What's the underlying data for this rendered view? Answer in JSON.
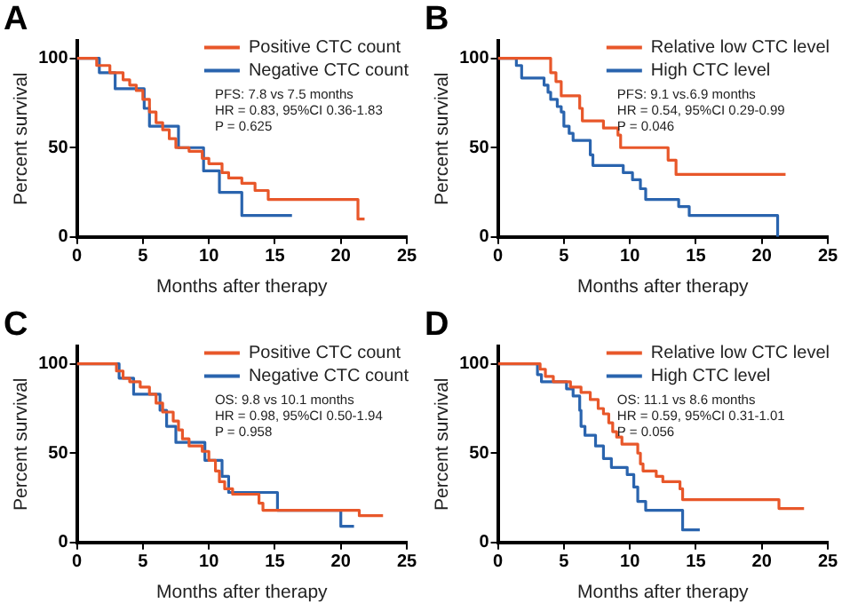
{
  "chart_data": [
    {
      "type": "step",
      "title": "A",
      "xlabel": "Months after therapy",
      "ylabel": "Percent survival",
      "xlim": [
        0,
        25
      ],
      "xticks": [
        0,
        5,
        10,
        15,
        20,
        25
      ],
      "ylim": [
        0,
        110
      ],
      "yticks": [
        0,
        50,
        100
      ],
      "grid": false,
      "legend": "top right",
      "annotations": [
        "PFS: 7.8 vs 7.5 months",
        "HR = 0.83, 95%CI 0.36-1.83",
        "P = 0.625"
      ],
      "series": [
        {
          "name": "Positive CTC count",
          "color": "#e8572a",
          "x": [
            0,
            1.5,
            2.5,
            3.5,
            4.0,
            4.5,
            5.0,
            5.5,
            6.0,
            6.5,
            7.0,
            7.5,
            8.5,
            9.5,
            10.0,
            11.0,
            11.5,
            12.5,
            13.5,
            14.5,
            21.3,
            21.8
          ],
          "values": [
            100,
            96,
            92,
            88,
            85,
            82,
            77,
            70,
            64,
            60,
            55,
            50,
            48,
            44,
            41,
            36,
            33,
            30,
            26,
            21,
            10,
            10
          ]
        },
        {
          "name": "Negative CTC count",
          "color": "#2a64ae",
          "x": [
            0,
            1.7,
            2.9,
            5.1,
            5.5,
            7.7,
            9.6,
            10.8,
            12.5,
            16.3
          ],
          "values": [
            100,
            92,
            83,
            72,
            62,
            50,
            37,
            25,
            12,
            12
          ]
        }
      ]
    },
    {
      "type": "step",
      "title": "B",
      "xlabel": "Months after therapy",
      "ylabel": "Percent survival",
      "xlim": [
        0,
        25
      ],
      "xticks": [
        0,
        5,
        10,
        15,
        20,
        25
      ],
      "ylim": [
        0,
        110
      ],
      "yticks": [
        0,
        50,
        100
      ],
      "grid": false,
      "legend": "top right",
      "annotations": [
        "PFS: 9.1 vs.6.9 months",
        "HR = 0.54, 95%CI 0.29-0.99",
        "P = 0.046"
      ],
      "series": [
        {
          "name": "Relative low CTC level",
          "color": "#e8572a",
          "x": [
            0,
            4.0,
            4.4,
            4.8,
            6.2,
            6.4,
            8.0,
            9.1,
            9.3,
            12.9,
            13.5,
            21.8
          ],
          "values": [
            100,
            92,
            87,
            79,
            72,
            65,
            61,
            57,
            50,
            43,
            35,
            35
          ]
        },
        {
          "name": "High CTC level",
          "color": "#2a64ae",
          "x": [
            0,
            1.4,
            1.8,
            3.5,
            3.8,
            4.0,
            4.5,
            4.8,
            5.0,
            5.4,
            5.7,
            7.0,
            7.2,
            9.5,
            10.2,
            10.8,
            11.2,
            13.7,
            14.5,
            21.2
          ],
          "values": [
            100,
            96,
            89,
            85,
            81,
            77,
            73,
            70,
            62,
            58,
            54,
            46,
            40,
            36,
            32,
            27,
            21,
            17,
            12,
            0
          ]
        }
      ]
    },
    {
      "type": "step",
      "title": "C",
      "xlabel": "Months after therapy",
      "ylabel": "Percent survival",
      "xlim": [
        0,
        25
      ],
      "xticks": [
        0,
        5,
        10,
        15,
        20,
        25
      ],
      "ylim": [
        0,
        110
      ],
      "yticks": [
        0,
        50,
        100
      ],
      "grid": false,
      "legend": "top right",
      "annotations": [
        "OS: 9.8 vs 10.1 months",
        "HR = 0.98, 95%CI 0.50-1.94",
        "P = 0.958"
      ],
      "series": [
        {
          "name": "Positive CTC count",
          "color": "#e8572a",
          "x": [
            0,
            3.0,
            3.5,
            4.0,
            4.8,
            5.5,
            6.0,
            6.5,
            7.3,
            7.7,
            8.0,
            8.5,
            9.5,
            10.0,
            10.5,
            10.8,
            11.2,
            11.8,
            13.8,
            14.1,
            21.4,
            23.2
          ],
          "values": [
            100,
            96,
            92,
            90,
            87,
            83,
            78,
            73,
            68,
            63,
            58,
            54,
            51,
            46,
            40,
            34,
            30,
            27,
            22,
            18,
            15,
            15
          ]
        },
        {
          "name": "Negative CTC count",
          "color": "#2a64ae",
          "x": [
            0,
            3.2,
            4.3,
            6.3,
            6.8,
            7.5,
            9.7,
            11.0,
            11.5,
            15.2,
            20.0,
            21.0
          ],
          "values": [
            100,
            92,
            83,
            74,
            65,
            56,
            46,
            37,
            28,
            18,
            9,
            9
          ]
        }
      ]
    },
    {
      "type": "step",
      "title": "D",
      "xlabel": "Months after therapy",
      "ylabel": "Percent survival",
      "xlim": [
        0,
        25
      ],
      "xticks": [
        0,
        5,
        10,
        15,
        20,
        25
      ],
      "ylim": [
        0,
        110
      ],
      "yticks": [
        0,
        50,
        100
      ],
      "grid": false,
      "legend": "top right",
      "annotations": [
        "OS: 11.1 vs 8.6 months",
        "HR = 0.59, 95%CI 0.31-1.01",
        "P = 0.056"
      ],
      "series": [
        {
          "name": "Relative low CTC level",
          "color": "#e8572a",
          "x": [
            0,
            3.2,
            3.6,
            4.2,
            5.5,
            6.3,
            7.0,
            7.6,
            8.0,
            8.4,
            8.7,
            9.0,
            9.4,
            10.6,
            10.8,
            11.0,
            12.0,
            12.5,
            13.8,
            14.0,
            21.3,
            23.2
          ],
          "values": [
            100,
            97,
            93,
            90,
            87,
            84,
            80,
            75,
            72,
            67,
            62,
            59,
            55,
            50,
            44,
            40,
            37,
            34,
            30,
            24,
            19,
            19
          ]
        },
        {
          "name": "High CTC level",
          "color": "#2a64ae",
          "x": [
            0,
            3.0,
            3.3,
            5.2,
            5.7,
            6.2,
            6.3,
            6.6,
            7.4,
            8.0,
            8.6,
            9.8,
            10.3,
            10.6,
            11.2,
            14.0,
            15.3
          ],
          "values": [
            100,
            94,
            90,
            86,
            82,
            74,
            65,
            60,
            54,
            47,
            42,
            38,
            31,
            23,
            18,
            7,
            7
          ]
        }
      ]
    }
  ]
}
